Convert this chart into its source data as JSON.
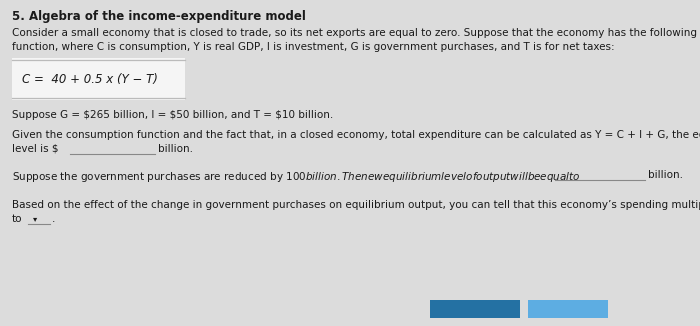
{
  "title": "5. Algebra of the income-expenditure model",
  "bg_color": "#dcdcdc",
  "text_color": "#1a1a1a",
  "para1_line1": "Consider a small economy that is closed to trade, so its net exports are equal to zero. Suppose that the economy has the following consumption",
  "para1_line2": "function, where C is consumption, Y is real GDP, I is investment, G is government purchases, and T is for net taxes:",
  "formula": "C =  40 + 0.5 x (Y − T)",
  "para2": "Suppose G = $265 billion, I = $50 billion, and T = $10 billion.",
  "para3_line1": "Given the consumption function and the fact that, in a closed economy, total expenditure can be calculated as Y = C + I + G, the equilibrium output",
  "para3_line2_pre": "level is $",
  "para3_line2_post": "billion.",
  "para4_pre": "Suppose the government purchases are reduced by $100 billion. The new equilibrium level of output will be equal to $",
  "para4_post": "billion.",
  "para5_line1": "Based on the effect of the change in government purchases on equilibrium output, you can tell that this economy’s spending multiplier is equal",
  "para5_line2": "to",
  "dropdown_arrow": "▾",
  "button1_color": "#2471a3",
  "button2_color": "#5dade2",
  "formula_box_color": "#f5f5f5",
  "formula_box_border": "#bbbbbb",
  "underline_color": "#888888",
  "font_size_title": 8.5,
  "font_size_body": 7.5,
  "font_size_formula": 8.5
}
